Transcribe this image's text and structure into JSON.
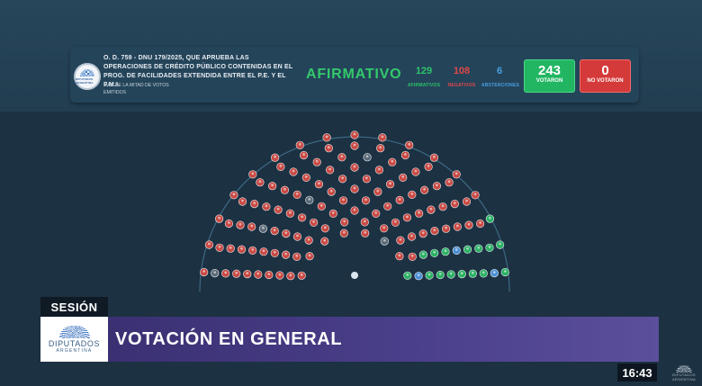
{
  "header": {
    "logo": {
      "text": "DIPUTADOS ARGENTINA",
      "icon": "diputados-sun-logo"
    },
    "motion_title": "O. D. 759 - DNU 179/2025, QUE APRUEBA LAS OPERACIONES DE CRÉDITO PÚBLICO CONTENIDAS EN EL PROG. DE FACILIDADES EXTENDIDA ENTRE EL P.E. Y EL F.M.I.",
    "majority_rule": "MÁS DE LA MITAD DE VOTOS EMITIDOS",
    "result": "AFIRMATIVO",
    "stats": [
      {
        "value": "129",
        "label": "AFIRMATIVOS",
        "color": "#2ec36a"
      },
      {
        "value": "108",
        "label": "NEGATIVOS",
        "color": "#e04848"
      },
      {
        "value": "6",
        "label": "ABSTENCIONES",
        "color": "#4a9fe0"
      }
    ],
    "voted": {
      "value": "243",
      "label": "VOTARON",
      "color": "#22b663"
    },
    "not_voted": {
      "value": "0",
      "label": "NO VOTARON",
      "color": "#d53a3a"
    }
  },
  "hemicycle": {
    "colors": {
      "afirmativo": "#2bb163",
      "negativo": "#c94a44",
      "abstencion": "#4a8fd6",
      "ausente": "#5b6a76",
      "presidente": "#d9e6ef"
    },
    "counts": {
      "afirmativo": 129,
      "negativo": 108,
      "abstencion": 6
    }
  },
  "banner": {
    "tag": "SESIÓN",
    "logo_line1": "DIPUTADOS",
    "logo_line2": "ARGENTINA",
    "title": "VOTACIÓN EN GENERAL"
  },
  "clock": "16:43",
  "corner_logo": "DIPUTADOS ARGENTINA"
}
